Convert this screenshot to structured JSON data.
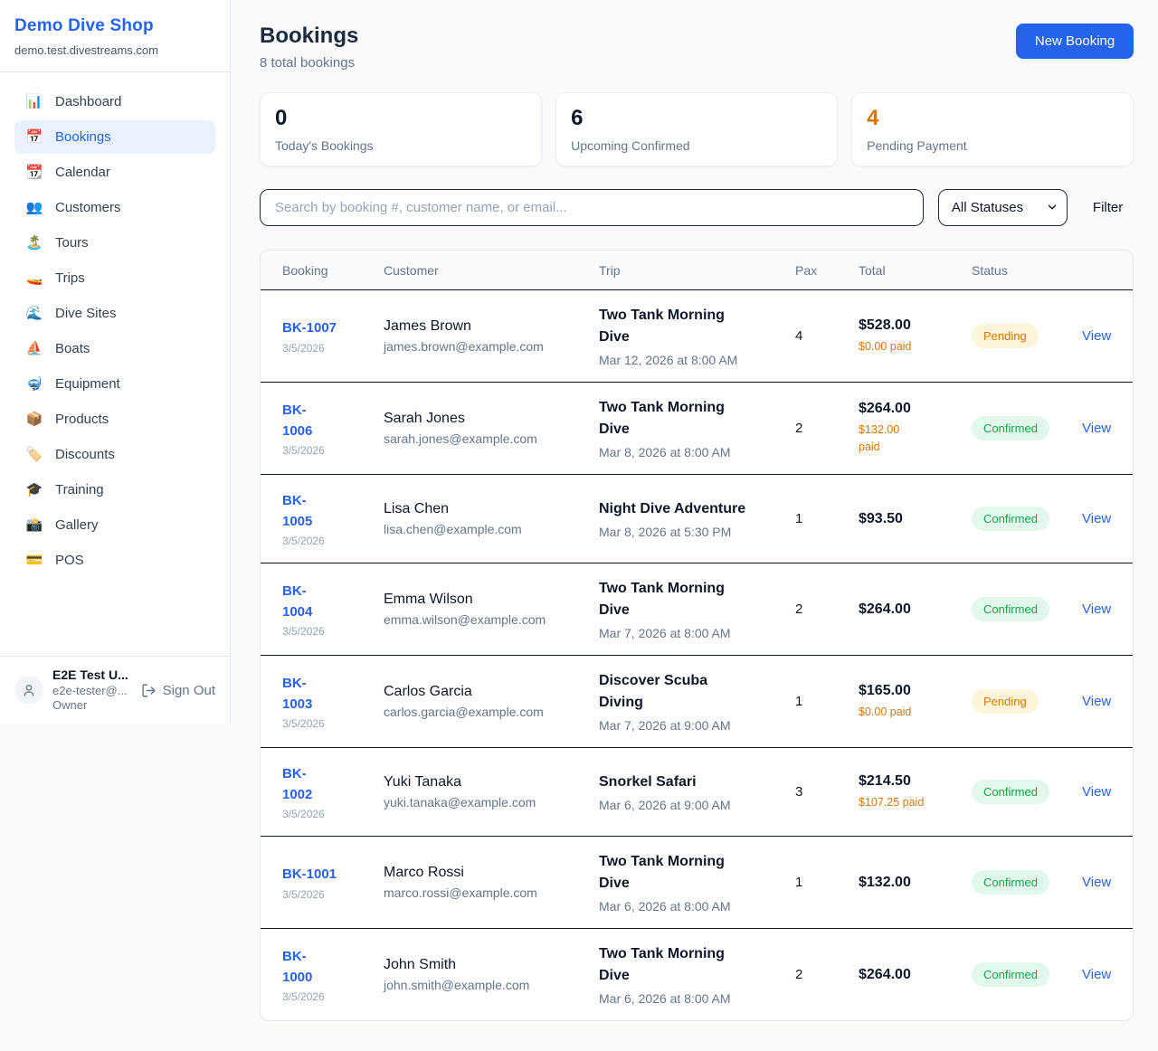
{
  "sidebar": {
    "brand": "Demo Dive Shop",
    "domain": "demo.test.divestreams.com",
    "items": [
      {
        "label": "Dashboard",
        "icon_glyph": "📊",
        "icon_name": "bar-chart-icon",
        "active": false
      },
      {
        "label": "Bookings",
        "icon_glyph": "📅",
        "icon_name": "calendar-icon",
        "active": true
      },
      {
        "label": "Calendar",
        "icon_glyph": "📆",
        "icon_name": "tear-off-calendar-icon",
        "active": false
      },
      {
        "label": "Customers",
        "icon_glyph": "👥",
        "icon_name": "people-icon",
        "active": false
      },
      {
        "label": "Tours",
        "icon_glyph": "🏝️",
        "icon_name": "island-icon",
        "active": false
      },
      {
        "label": "Trips",
        "icon_glyph": "🚤",
        "icon_name": "speedboat-icon",
        "active": false
      },
      {
        "label": "Dive Sites",
        "icon_glyph": "🌊",
        "icon_name": "wave-icon",
        "active": false
      },
      {
        "label": "Boats",
        "icon_glyph": "⛵",
        "icon_name": "sailboat-icon",
        "active": false
      },
      {
        "label": "Equipment",
        "icon_glyph": "🤿",
        "icon_name": "diving-mask-icon",
        "active": false
      },
      {
        "label": "Products",
        "icon_glyph": "📦",
        "icon_name": "package-icon",
        "active": false
      },
      {
        "label": "Discounts",
        "icon_glyph": "🏷️",
        "icon_name": "tag-icon",
        "active": false
      },
      {
        "label": "Training",
        "icon_glyph": "🎓",
        "icon_name": "graduation-cap-icon",
        "active": false
      },
      {
        "label": "Gallery",
        "icon_glyph": "📸",
        "icon_name": "camera-flash-icon",
        "active": false
      },
      {
        "label": "POS",
        "icon_glyph": "💳",
        "icon_name": "credit-card-icon",
        "active": false
      }
    ],
    "user": {
      "name": "E2E Test U...",
      "email": "e2e-tester@...",
      "role": "Owner",
      "sign_out": "Sign Out"
    }
  },
  "header": {
    "title": "Bookings",
    "subtitle": "8 total bookings",
    "new_booking": "New Booking"
  },
  "stats": [
    {
      "value": "0",
      "label": "Today's Bookings"
    },
    {
      "value": "6",
      "label": "Upcoming Confirmed"
    },
    {
      "value": "4",
      "label": "Pending Payment"
    }
  ],
  "filters": {
    "search_placeholder": "Search by booking #, customer name, or email...",
    "status_select": "All Statuses",
    "filter_label": "Filter"
  },
  "table": {
    "columns": [
      "Booking",
      "Customer",
      "Trip",
      "Pax",
      "Total",
      "Status"
    ],
    "view_label": "View",
    "rows": [
      {
        "id": "BK-1007",
        "date": "3/5/2026",
        "customer": "James Brown",
        "email": "james.brown@example.com",
        "trip": "Two Tank Morning\nDive",
        "trip_date": "Mar 12, 2026 at 8:00 AM",
        "pax": "4",
        "total": "$528.00",
        "paid": "$0.00 paid",
        "status": "Pending"
      },
      {
        "id": "BK-\n1006",
        "date": "3/5/2026",
        "customer": "Sarah Jones",
        "email": "sarah.jones@example.com",
        "trip": "Two Tank Morning\nDive",
        "trip_date": "Mar 8, 2026 at 8:00 AM",
        "pax": "2",
        "total": "$264.00",
        "paid": "$132.00\npaid",
        "status": "Confirmed"
      },
      {
        "id": "BK-\n1005",
        "date": "3/5/2026",
        "customer": "Lisa Chen",
        "email": "lisa.chen@example.com",
        "trip": "Night Dive Adventure",
        "trip_date": "Mar 8, 2026 at 5:30 PM",
        "pax": "1",
        "total": "$93.50",
        "paid": null,
        "status": "Confirmed"
      },
      {
        "id": "BK-\n1004",
        "date": "3/5/2026",
        "customer": "Emma Wilson",
        "email": "emma.wilson@example.com",
        "trip": "Two Tank Morning\nDive",
        "trip_date": "Mar 7, 2026 at 8:00 AM",
        "pax": "2",
        "total": "$264.00",
        "paid": null,
        "status": "Confirmed"
      },
      {
        "id": "BK-\n1003",
        "date": "3/5/2026",
        "customer": "Carlos Garcia",
        "email": "carlos.garcia@example.com",
        "trip": "Discover Scuba\nDiving",
        "trip_date": "Mar 7, 2026 at 9:00 AM",
        "pax": "1",
        "total": "$165.00",
        "paid": "$0.00 paid",
        "status": "Pending"
      },
      {
        "id": "BK-\n1002",
        "date": "3/5/2026",
        "customer": "Yuki Tanaka",
        "email": "yuki.tanaka@example.com",
        "trip": "Snorkel Safari",
        "trip_date": "Mar 6, 2026 at 9:00 AM",
        "pax": "3",
        "total": "$214.50",
        "paid": "$107.25 paid",
        "status": "Confirmed"
      },
      {
        "id": "BK-1001",
        "date": "3/5/2026",
        "customer": "Marco Rossi",
        "email": "marco.rossi@example.com",
        "trip": "Two Tank Morning\nDive",
        "trip_date": "Mar 6, 2026 at 8:00 AM",
        "pax": "1",
        "total": "$132.00",
        "paid": null,
        "status": "Confirmed"
      },
      {
        "id": "BK-\n1000",
        "date": "3/5/2026",
        "customer": "John Smith",
        "email": "john.smith@example.com",
        "trip": "Two Tank Morning\nDive",
        "trip_date": "Mar 6, 2026 at 8:00 AM",
        "pax": "2",
        "total": "$264.00",
        "paid": null,
        "status": "Confirmed"
      }
    ]
  },
  "colors": {
    "accent_blue": "#2563eb",
    "pending_orange": "#d97706",
    "confirmed_green": "#16a34a",
    "page_background": "#f8fafc"
  }
}
